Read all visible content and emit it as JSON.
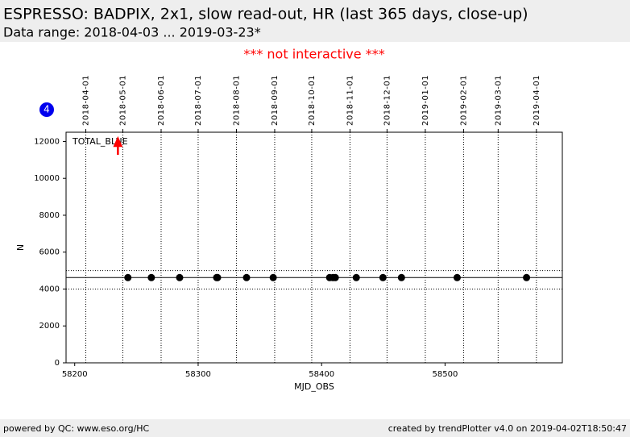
{
  "header": {
    "title": "ESPRESSO: BADPIX, 2x1, slow read-out, HR (last 365 days, close-up)",
    "subtitle": "Data range: 2018-04-03 ... 2019-03-23*",
    "notice": "*** not interactive ***",
    "badge": "4"
  },
  "chart_data": {
    "type": "scatter",
    "series_label": "TOTAL_BLUE",
    "xlabel": "MJD_OBS",
    "ylabel": "N",
    "color": "#000000",
    "x": [
      58243.1,
      58262.1,
      58285.0,
      58315.0,
      58315.7,
      58339.2,
      58360.8,
      58406.5,
      58409.2,
      58411.1,
      58428.1,
      58449.7,
      58464.7,
      58509.8,
      58566.0
    ],
    "values": [
      4620,
      4620,
      4620,
      4620,
      4620,
      4620,
      4620,
      4620,
      4620,
      4620,
      4620,
      4620,
      4620,
      4620,
      4620
    ],
    "outliers_x": [
      58235
    ],
    "outlier_color": "#ff0000",
    "reference_line": 4620,
    "limit_lines": [
      5000,
      4000
    ],
    "xlim": [
      58193,
      58595
    ],
    "ylim": [
      0,
      12500
    ],
    "xticks": [
      58200,
      58300,
      58400,
      58500
    ],
    "yticks": [
      0,
      2000,
      4000,
      6000,
      8000,
      10000,
      12000
    ],
    "date_ticks": [
      {
        "value": 58209,
        "label": "2018-04-01"
      },
      {
        "value": 58239,
        "label": "2018-05-01"
      },
      {
        "value": 58270,
        "label": "2018-06-01"
      },
      {
        "value": 58300,
        "label": "2018-07-01"
      },
      {
        "value": 58331,
        "label": "2018-08-01"
      },
      {
        "value": 58362,
        "label": "2018-09-01"
      },
      {
        "value": 58392,
        "label": "2018-10-01"
      },
      {
        "value": 58423,
        "label": "2018-11-01"
      },
      {
        "value": 58453,
        "label": "2018-12-01"
      },
      {
        "value": 58484,
        "label": "2019-01-01"
      },
      {
        "value": 58515,
        "label": "2019-02-01"
      },
      {
        "value": 58543,
        "label": "2019-03-01"
      },
      {
        "value": 58574,
        "label": "2019-04-01"
      }
    ],
    "grid": true
  },
  "footer": {
    "left": "powered by QC: www.eso.org/HC",
    "right": "created by trendPlotter v4.0 on 2019-04-02T18:50:47"
  }
}
